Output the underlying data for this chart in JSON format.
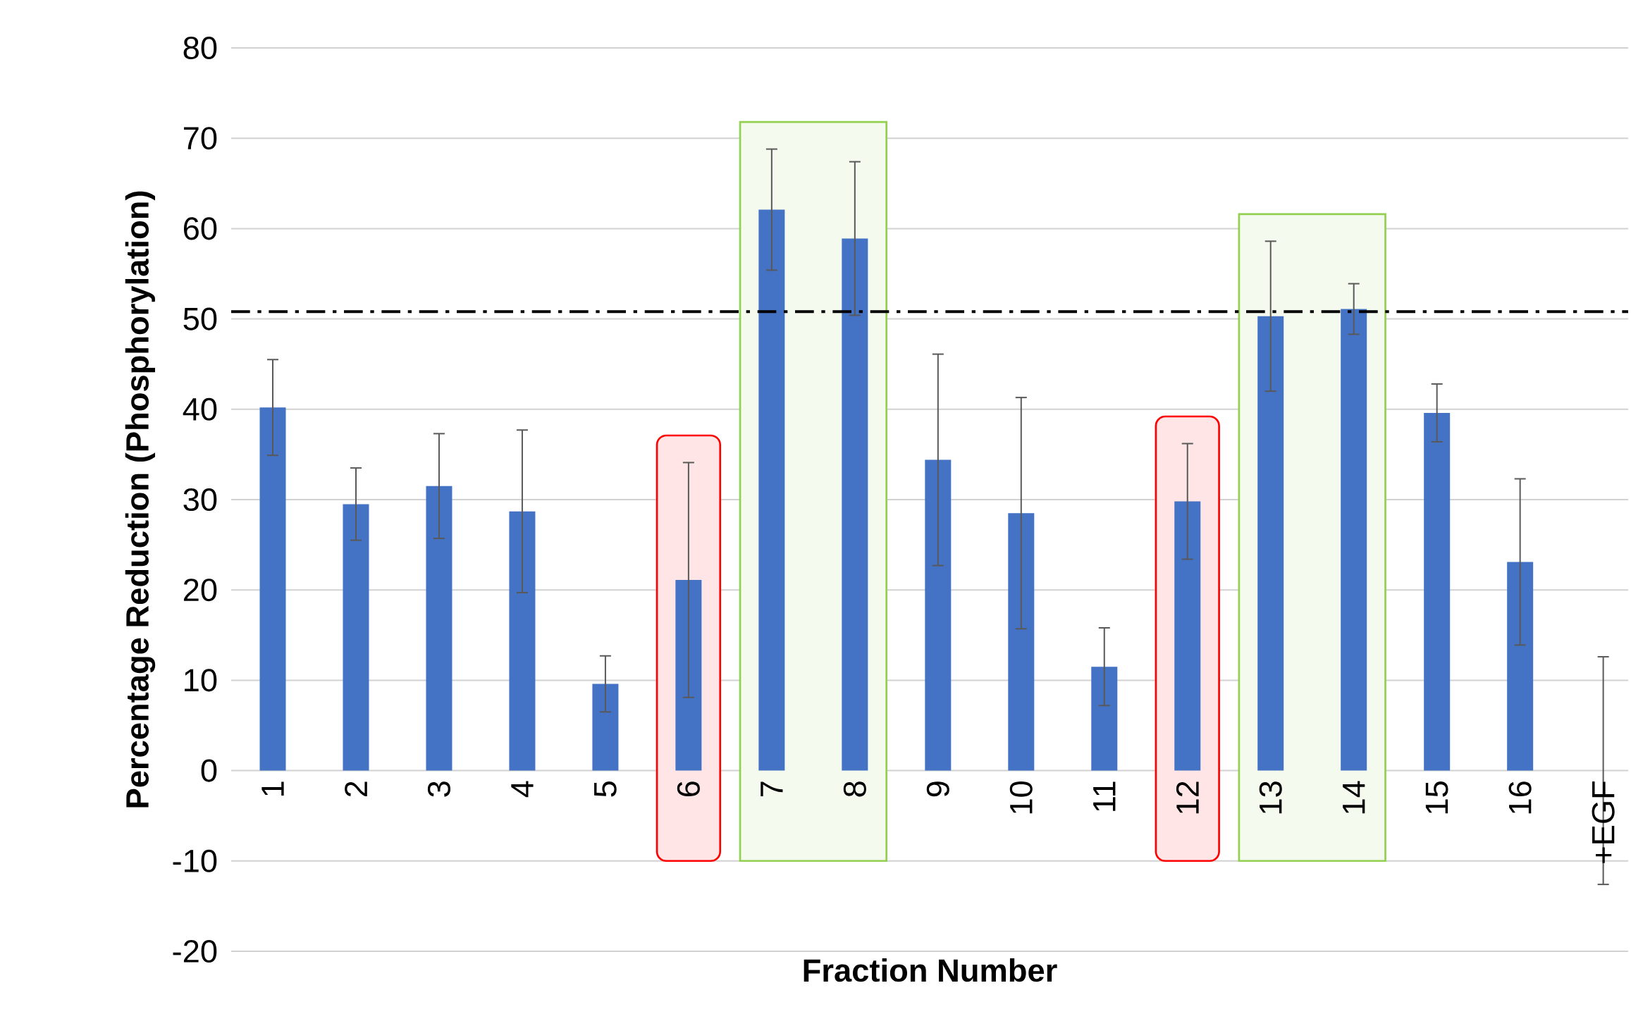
{
  "chart_data": {
    "type": "bar",
    "xlabel": "Fraction Number",
    "ylabel": "Percentage Reduction (Phosphorylation)",
    "categories": [
      "1",
      "2",
      "3",
      "4",
      "5",
      "6",
      "7",
      "8",
      "9",
      "10",
      "11",
      "12",
      "13",
      "14",
      "15",
      "16",
      "+EGF"
    ],
    "values": [
      40.2,
      29.5,
      31.5,
      28.7,
      9.6,
      21.1,
      62.1,
      58.9,
      34.4,
      28.5,
      11.5,
      29.8,
      50.3,
      51.1,
      39.6,
      23.1,
      0
    ],
    "errors": [
      5.3,
      4,
      5.8,
      9,
      3.1,
      13,
      6.7,
      8.5,
      11.7,
      12.8,
      4.3,
      6.4,
      8.3,
      2.8,
      3.2,
      9.2,
      12.6
    ],
    "color": "#4472c4",
    "ylim": [
      -20,
      80
    ],
    "yticks": [
      -20,
      -10,
      0,
      10,
      20,
      30,
      40,
      50,
      60,
      70,
      80
    ],
    "grid": "y",
    "ref_lines": [
      {
        "axis": "y",
        "value": 50.8,
        "color": "#000000",
        "line_style": "dashdot"
      }
    ],
    "bands": [
      {
        "axis": "x",
        "from": "6",
        "to": "6",
        "color": "#ff0000"
      },
      {
        "axis": "x",
        "from": "7",
        "to": "8",
        "color": "#92d050"
      },
      {
        "axis": "x",
        "from": "12",
        "to": "12",
        "color": "#ff0000"
      },
      {
        "axis": "x",
        "from": "13",
        "to": "14",
        "color": "#92d050"
      }
    ]
  }
}
